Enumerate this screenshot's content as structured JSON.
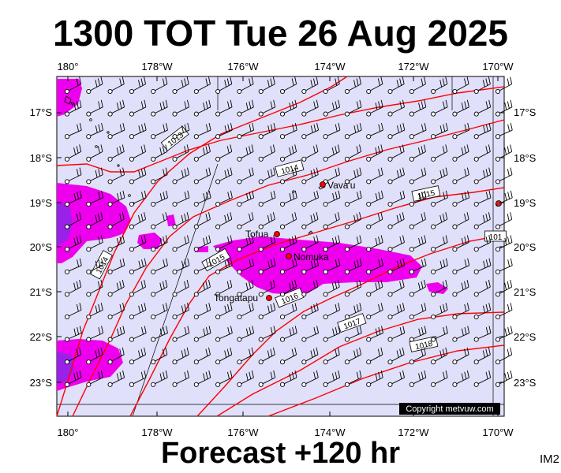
{
  "title": "1300 TOT Tue 26 Aug 2025",
  "footer": "Forecast +120 hr",
  "corner_tag": "IM2",
  "copyright": "Copyright metvuw.com",
  "axes": {
    "lon_labels": [
      "180°",
      "178°W",
      "176°W",
      "174°W",
      "172°W",
      "170°W"
    ],
    "lat_labels": [
      "17°S",
      "18°S",
      "19°S",
      "20°S",
      "21°S",
      "22°S",
      "23°S"
    ]
  },
  "places": [
    {
      "name": "Vava'u"
    },
    {
      "name": "Tofua"
    },
    {
      "name": "Nomuka"
    },
    {
      "name": "Tongatapu"
    }
  ],
  "isobars": [
    "1013",
    "1014",
    "1014",
    "1015",
    "1015",
    "1016",
    "1017",
    "1018",
    "101"
  ],
  "colors": {
    "ocean": "#e0e0fa",
    "precip_light": "#ee00ee",
    "precip_heavy": "#9a22e8",
    "isobar": "#ff0000",
    "barb": "#000000"
  }
}
